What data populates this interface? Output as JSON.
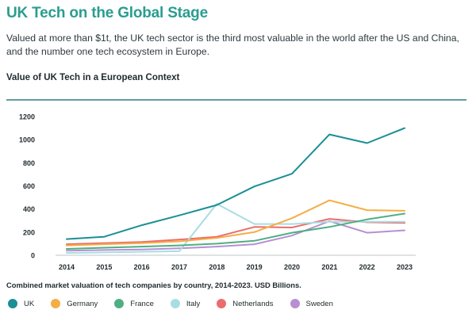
{
  "header": {
    "title": "UK Tech on the Global Stage",
    "intro": "Valued at more than $1t, the UK tech sector is the third most valuable in the world after the US and China, and the number one tech ecosystem in Europe."
  },
  "chart_data": {
    "type": "line",
    "title": "Value of UK Tech in a European Context",
    "caption": "Combined market valuation of tech companies by country, 2014-2023. USD Billions.",
    "xlabel": "",
    "ylabel": "",
    "ylim": [
      0,
      1200
    ],
    "yticks": [
      0,
      200,
      400,
      600,
      800,
      1000,
      1200
    ],
    "grid": false,
    "legend_position": "bottom",
    "x": [
      "2014",
      "2015",
      "2016",
      "2017",
      "2018",
      "2019",
      "2020",
      "2021",
      "2022",
      "2023"
    ],
    "series": [
      {
        "name": "UK",
        "color": "#1b8f94",
        "values": [
          140,
          160,
          260,
          345,
          435,
          595,
          705,
          1045,
          970,
          1100
        ]
      },
      {
        "name": "Germany",
        "color": "#f5ad45",
        "values": [
          85,
          95,
          105,
          120,
          150,
          200,
          320,
          475,
          390,
          385
        ]
      },
      {
        "name": "France",
        "color": "#4fae82",
        "values": [
          55,
          65,
          75,
          85,
          100,
          125,
          195,
          245,
          310,
          360
        ]
      },
      {
        "name": "Italy",
        "color": "#a8dde3",
        "values": [
          20,
          25,
          30,
          35,
          445,
          270,
          270,
          290,
          290,
          290
        ]
      },
      {
        "name": "Netherlands",
        "color": "#ea6c6c",
        "values": [
          95,
          105,
          115,
          135,
          160,
          245,
          240,
          315,
          285,
          280
        ]
      },
      {
        "name": "Sweden",
        "color": "#b690d2",
        "values": [
          40,
          45,
          50,
          60,
          75,
          95,
          170,
          295,
          195,
          215
        ]
      }
    ]
  }
}
